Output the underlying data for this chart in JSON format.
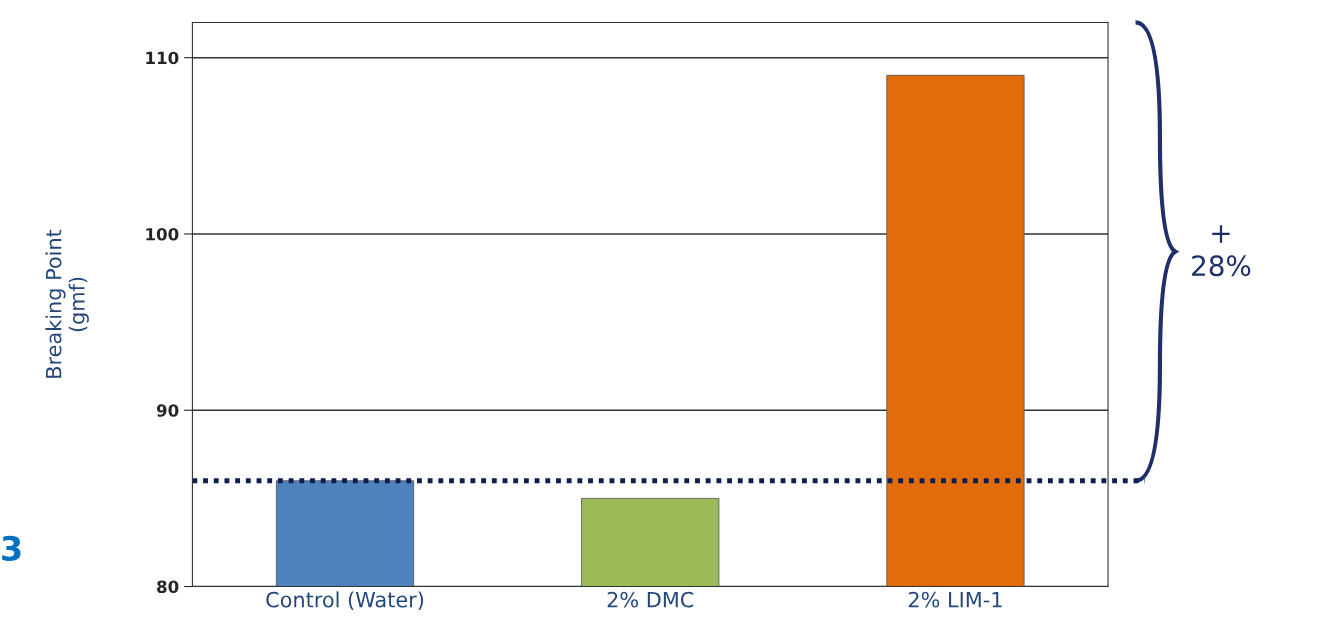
{
  "chart_data": {
    "type": "bar",
    "ylabel": "Breaking Point\n(gmf)",
    "categories": [
      "Control (Water)",
      "2% DMC",
      "2% LIM-1"
    ],
    "values": [
      86,
      85,
      109
    ],
    "colors": [
      "#4f81bd",
      "#9bbb59",
      "#e36c0a"
    ],
    "ylim": [
      80,
      112
    ],
    "yticks": [
      80,
      90,
      100,
      110
    ],
    "grid": "y",
    "ref_lines": [
      {
        "axis": "y",
        "value": 86,
        "color": "#0d1f4f",
        "line_style": "dotted"
      }
    ],
    "annotations": [
      "+\n28%",
      "3"
    ]
  }
}
